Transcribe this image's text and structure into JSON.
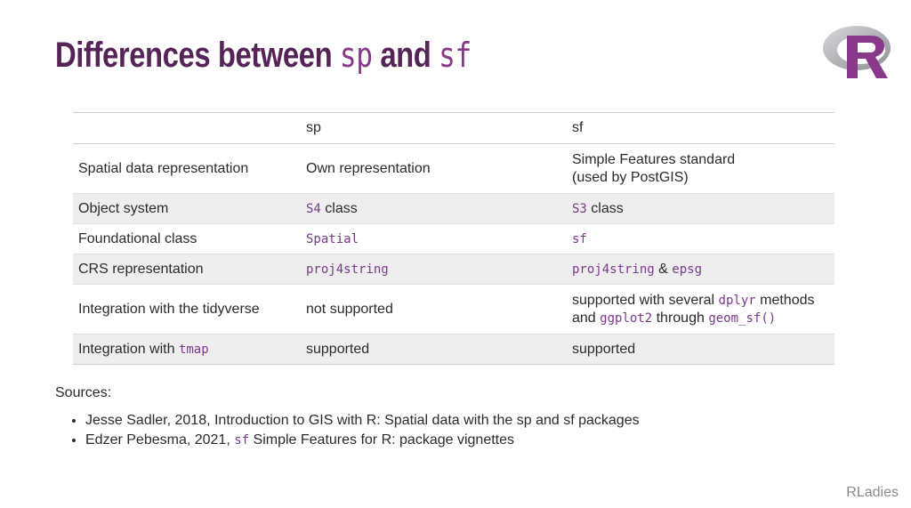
{
  "slide": {
    "title_parts": [
      "Differences between",
      "sp",
      "and",
      "sf"
    ],
    "footer": "RLadies"
  },
  "colors": {
    "title": "#562457",
    "code": "#7a3a8a",
    "alt_row": "#eeeeee"
  },
  "table": {
    "headers": [
      "",
      "sp",
      "sf"
    ],
    "rows": [
      {
        "feature": "Spatial data representation",
        "sp": [
          {
            "text": "Own representation",
            "code": false
          }
        ],
        "sf_lines": [
          [
            {
              "text": "Simple Features standard",
              "code": false
            }
          ],
          [
            {
              "text": "(used by PostGIS)",
              "code": false
            }
          ]
        ]
      },
      {
        "feature": "Object system",
        "sp": [
          {
            "text": "S4",
            "code": true
          },
          {
            "text": " class",
            "code": false
          }
        ],
        "sf_lines": [
          [
            {
              "text": "S3",
              "code": true
            },
            {
              "text": " class",
              "code": false
            }
          ]
        ]
      },
      {
        "feature": "Foundational class",
        "sp": [
          {
            "text": "Spatial",
            "code": true
          }
        ],
        "sf_lines": [
          [
            {
              "text": "sf",
              "code": true
            }
          ]
        ]
      },
      {
        "feature": "CRS representation",
        "sp": [
          {
            "text": "proj4string",
            "code": true
          }
        ],
        "sf_lines": [
          [
            {
              "text": "proj4string",
              "code": true
            },
            {
              "text": " & ",
              "code": false
            },
            {
              "text": "epsg",
              "code": true
            }
          ]
        ]
      },
      {
        "feature": "Integration with the tidyverse",
        "sp": [
          {
            "text": "not supported",
            "code": false
          }
        ],
        "sf_lines": [
          [
            {
              "text": "supported with several ",
              "code": false
            },
            {
              "text": "dplyr",
              "code": true
            },
            {
              "text": " methods",
              "code": false
            }
          ],
          [
            {
              "text": "and ",
              "code": false
            },
            {
              "text": "ggplot2",
              "code": true
            },
            {
              "text": " through ",
              "code": false
            },
            {
              "text": "geom_sf()",
              "code": true
            }
          ]
        ]
      },
      {
        "feature_parts": [
          {
            "text": "Integration with ",
            "code": false
          },
          {
            "text": "tmap",
            "code": true
          }
        ],
        "sp": [
          {
            "text": "supported",
            "code": false
          }
        ],
        "sf_lines": [
          [
            {
              "text": "supported",
              "code": false
            }
          ]
        ]
      }
    ]
  },
  "sources": {
    "heading": "Sources:",
    "items": [
      [
        {
          "text": "Jesse Sadler, 2018, Introduction to GIS with R: Spatial data with the sp and sf packages",
          "code": false
        }
      ],
      [
        {
          "text": "Edzer Pebesma, 2021, ",
          "code": false
        },
        {
          "text": "sf",
          "code": true
        },
        {
          "text": " Simple Features for R: package vignettes",
          "code": false
        }
      ]
    ]
  }
}
